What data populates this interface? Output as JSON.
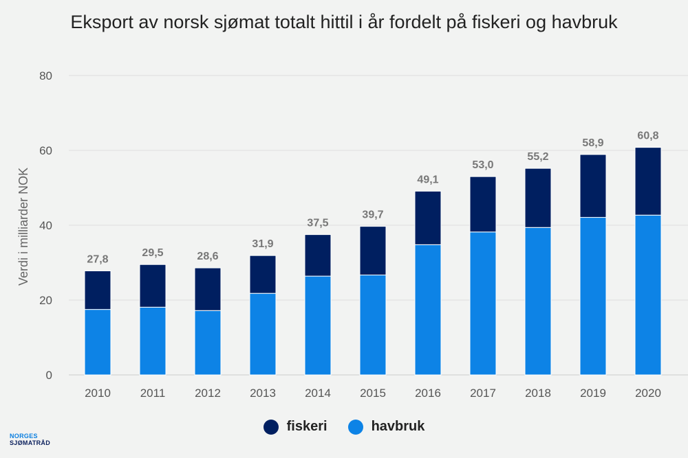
{
  "colors": {
    "fiskeri": "#001f60",
    "havbruk": "#0d83e6",
    "grid": "#dedede",
    "background": "#f2f3f2"
  },
  "logo": {
    "line1": "NORGES",
    "line2": "SJØMATRÅD"
  },
  "chart_data": {
    "type": "bar",
    "stacked": true,
    "title": "Eksport av norsk sjømat totalt hittil i år fordelt på fiskeri og havbruk",
    "ylabel": "Verdi i milliarder NOK",
    "xlabel": "",
    "ylim": [
      0,
      80
    ],
    "yticks": [
      0,
      20,
      40,
      60,
      80
    ],
    "grid": true,
    "legend_position": "bottom",
    "categories": [
      "2010",
      "2011",
      "2012",
      "2013",
      "2014",
      "2015",
      "2016",
      "2017",
      "2018",
      "2019",
      "2020"
    ],
    "series": [
      {
        "name": "havbruk",
        "values": [
          17.5,
          18.1,
          17.2,
          21.8,
          26.4,
          26.7,
          34.8,
          38.2,
          39.4,
          42.1,
          42.7
        ]
      },
      {
        "name": "fiskeri",
        "values": [
          10.3,
          11.4,
          11.4,
          10.1,
          11.1,
          13.0,
          14.3,
          14.8,
          15.8,
          16.8,
          18.1
        ]
      }
    ],
    "totals": [
      "27,8",
      "29,5",
      "28,6",
      "31,9",
      "37,5",
      "39,7",
      "49,1",
      "53,0",
      "55,2",
      "58,9",
      "60,8"
    ]
  }
}
